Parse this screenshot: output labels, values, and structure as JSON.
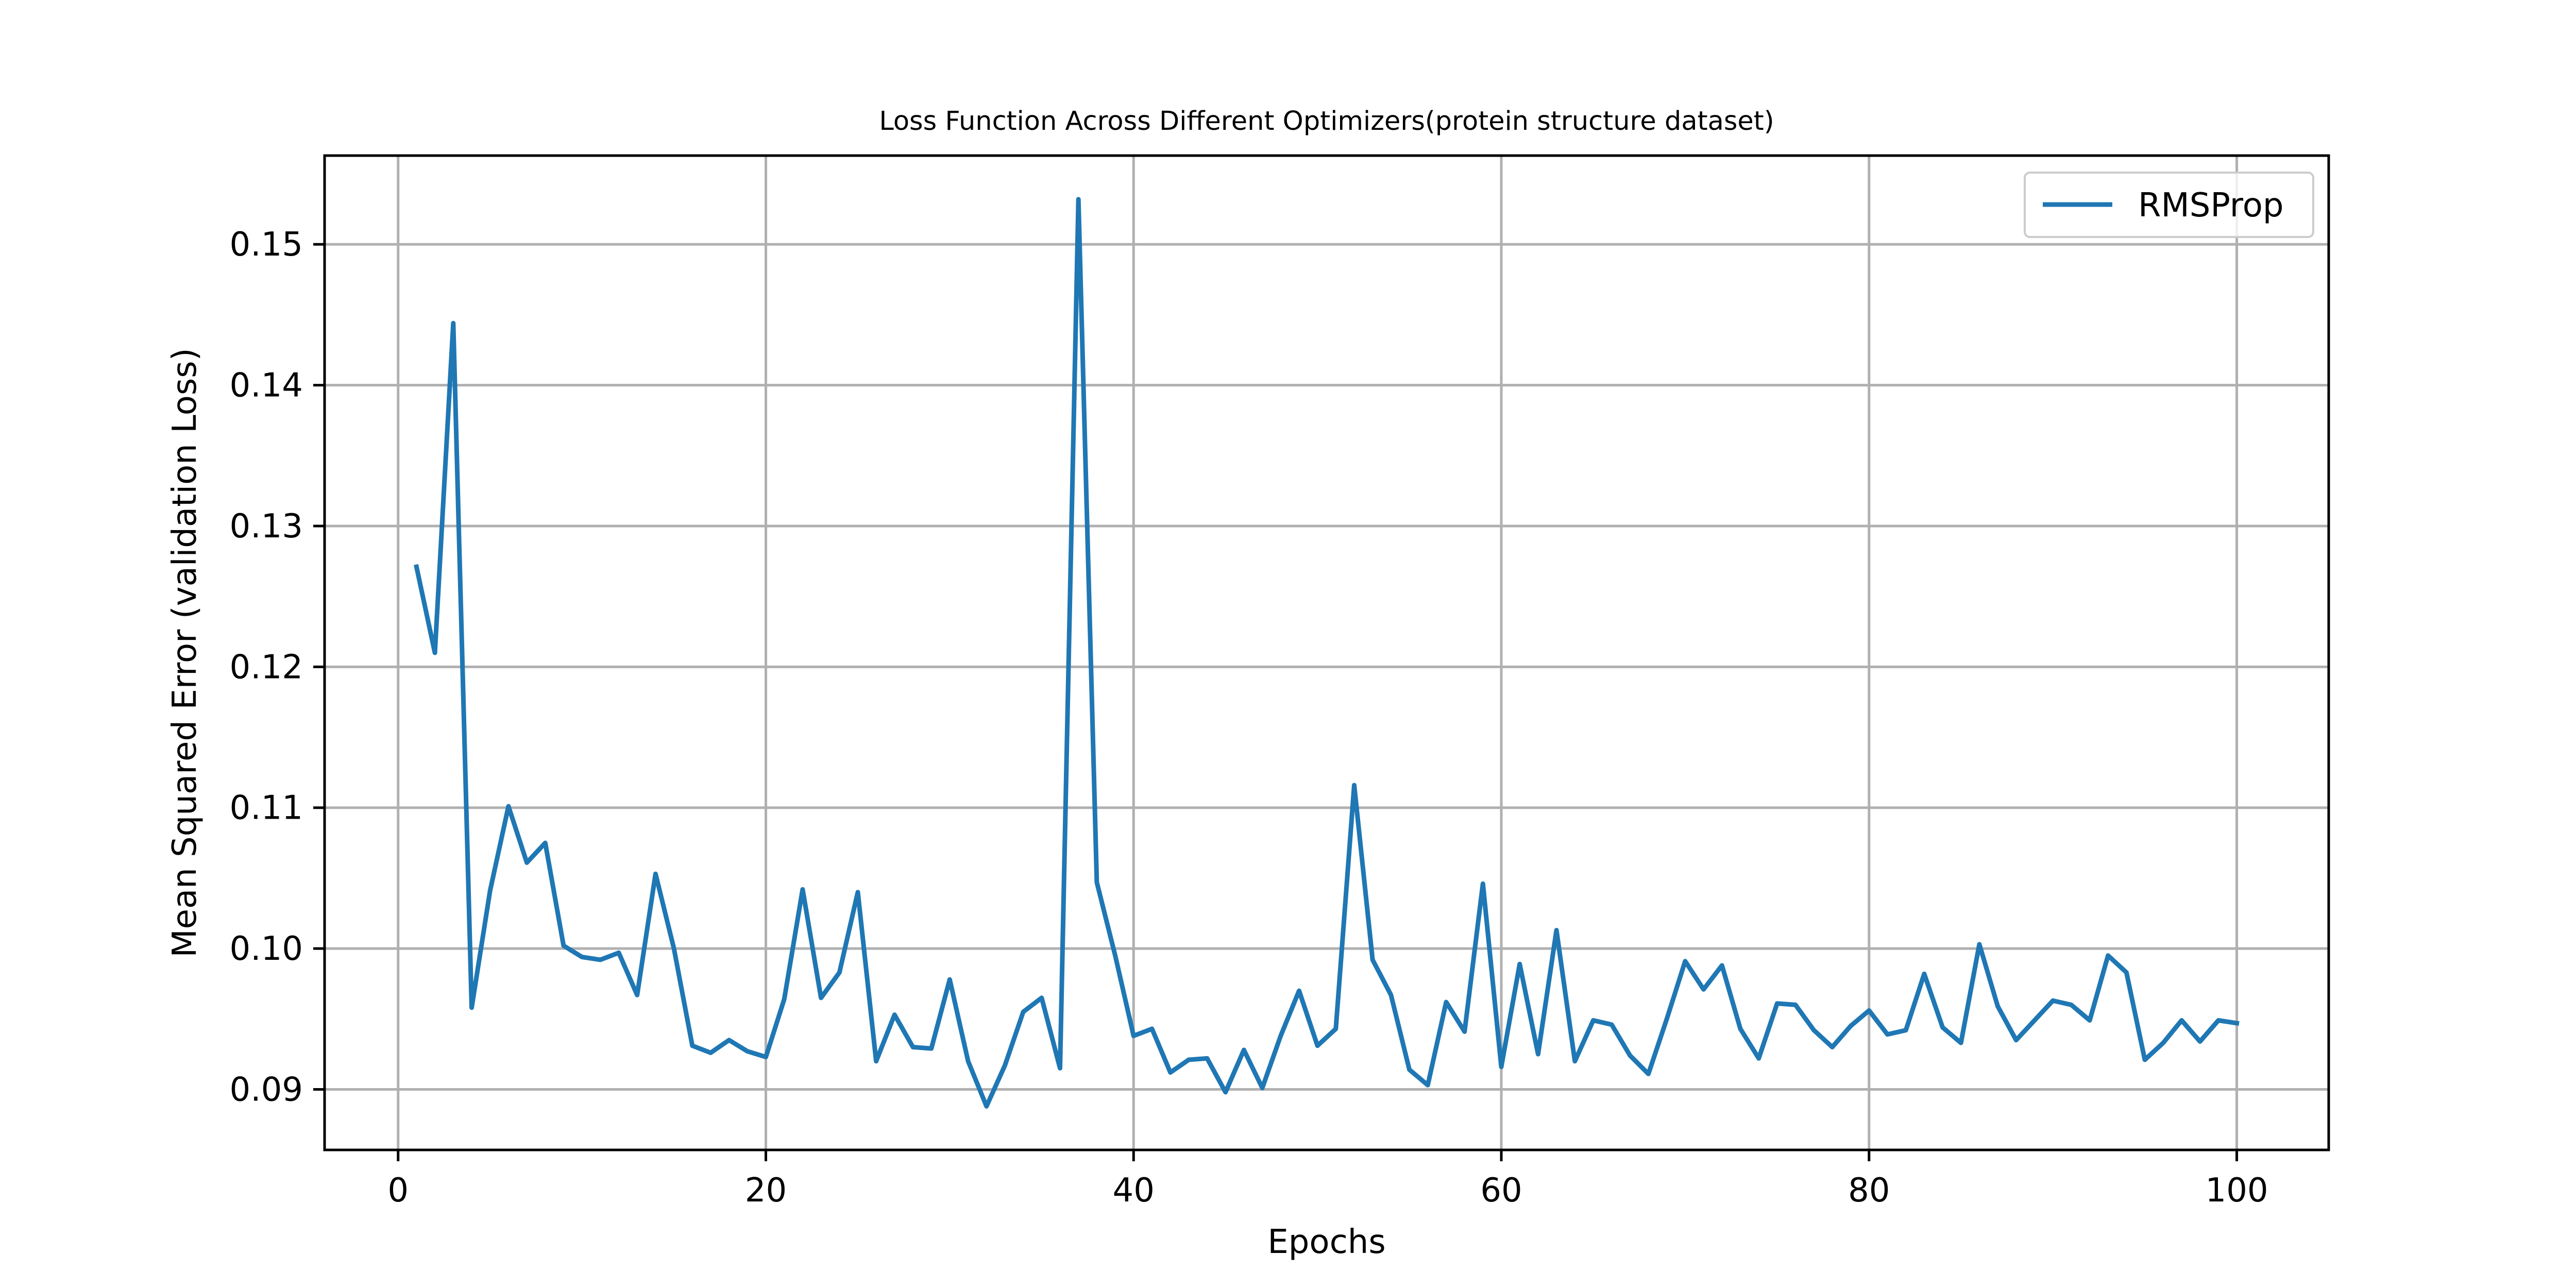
{
  "chart_data": {
    "type": "line",
    "title": "Loss Function Across Different Optimizers(protein structure dataset)",
    "xlabel": "Epochs",
    "ylabel": "Mean Squared Error (validation Loss)",
    "xlim": [
      -4,
      105
    ],
    "ylim": [
      0.0857,
      0.1563
    ],
    "x_ticks": [
      0,
      20,
      40,
      60,
      80,
      100
    ],
    "y_ticks": [
      0.09,
      0.1,
      0.11,
      0.12,
      0.13,
      0.14,
      0.15
    ],
    "x_tick_labels": [
      "0",
      "20",
      "40",
      "60",
      "80",
      "100"
    ],
    "y_tick_labels": [
      "0.09",
      "0.10",
      "0.11",
      "0.12",
      "0.13",
      "0.14",
      "0.15"
    ],
    "grid": true,
    "legend_position": "top-right",
    "series": [
      {
        "name": "RMSProp",
        "color": "#1f77b4",
        "x": [
          1,
          2,
          3,
          4,
          5,
          6,
          7,
          8,
          9,
          10,
          11,
          12,
          13,
          14,
          15,
          16,
          17,
          18,
          19,
          20,
          21,
          22,
          23,
          24,
          25,
          26,
          27,
          28,
          29,
          30,
          31,
          32,
          33,
          34,
          35,
          36,
          37,
          38,
          39,
          40,
          41,
          42,
          43,
          44,
          45,
          46,
          47,
          48,
          49,
          50,
          51,
          52,
          53,
          54,
          55,
          56,
          57,
          58,
          59,
          60,
          61,
          62,
          63,
          64,
          65,
          66,
          67,
          68,
          69,
          70,
          71,
          72,
          73,
          74,
          75,
          76,
          77,
          78,
          79,
          80,
          81,
          82,
          83,
          84,
          85,
          86,
          87,
          88,
          89,
          90,
          91,
          92,
          93,
          94,
          95,
          96,
          97,
          98,
          99,
          100
        ],
        "values": [
          0.1271,
          0.121,
          0.1444,
          0.0958,
          0.1041,
          0.1101,
          0.1061,
          0.1075,
          0.1002,
          0.0994,
          0.0992,
          0.0997,
          0.0967,
          0.1053,
          0.1,
          0.0931,
          0.0926,
          0.0935,
          0.0927,
          0.0923,
          0.0964,
          0.1042,
          0.0965,
          0.0983,
          0.104,
          0.092,
          0.0953,
          0.093,
          0.0929,
          0.0978,
          0.092,
          0.0888,
          0.0917,
          0.0955,
          0.0965,
          0.0915,
          0.1532,
          0.1047,
          0.0995,
          0.0938,
          0.0943,
          0.0912,
          0.0921,
          0.0922,
          0.0898,
          0.0928,
          0.0901,
          0.0938,
          0.097,
          0.0931,
          0.0943,
          0.1116,
          0.0992,
          0.0967,
          0.0914,
          0.0903,
          0.0962,
          0.0941,
          0.1046,
          0.0916,
          0.0989,
          0.0925,
          0.1013,
          0.092,
          0.0949,
          0.0946,
          0.0924,
          0.0911,
          0.095,
          0.0991,
          0.0971,
          0.0988,
          0.0943,
          0.0922,
          0.0961,
          0.096,
          0.0942,
          0.093,
          0.0945,
          0.0956,
          0.0939,
          0.0942,
          0.0982,
          0.0944,
          0.0933,
          0.1003,
          0.0959,
          0.0935,
          0.0949,
          0.0963,
          0.096,
          0.0949,
          0.0995,
          0.0983,
          0.0921,
          0.0933,
          0.0949,
          0.0934,
          0.0949,
          0.0947
        ]
      }
    ]
  }
}
